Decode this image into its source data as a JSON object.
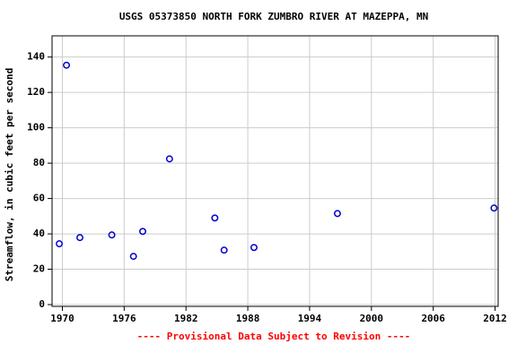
{
  "chart_data": {
    "type": "scatter",
    "title": "USGS 05373850 NORTH FORK ZUMBRO RIVER AT MAZEPPA, MN",
    "ylabel": "Streamflow, in cubic feet per second",
    "footer": "---- Provisional Data Subject to Revision ----",
    "color": "#0000cc",
    "x": [
      1969.7,
      1970.4,
      1971.7,
      1974.8,
      1976.9,
      1977.8,
      1980.4,
      1984.8,
      1985.7,
      1988.6,
      1996.7,
      2011.9
    ],
    "values": [
      34.4,
      135.4,
      37.9,
      39.4,
      27.3,
      41.4,
      82.4,
      49,
      30.8,
      32.3,
      51.5,
      54.6
    ],
    "xlim": [
      1969,
      2012.3
    ],
    "ylim": [
      -1,
      152
    ],
    "xticks": [
      1970,
      1976,
      1982,
      1988,
      1994,
      2000,
      2006,
      2012
    ],
    "yticks": [
      0,
      20,
      40,
      60,
      80,
      100,
      120,
      140
    ],
    "grid": true
  }
}
